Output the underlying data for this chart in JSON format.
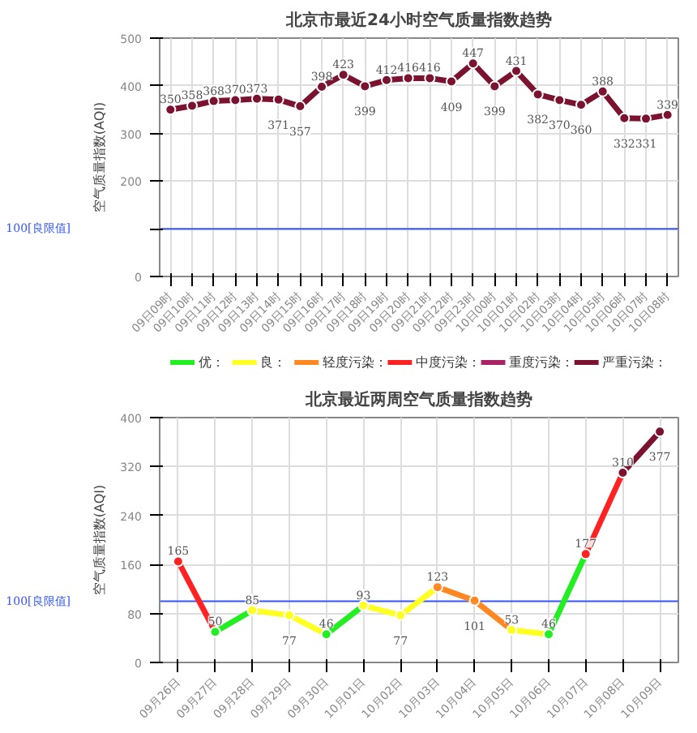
{
  "chart_data": [
    {
      "type": "line",
      "title": "北京市最近24小时空气质量指数趋势",
      "ylabel": "空气质量指数(AQI)",
      "categories": [
        "09日09时",
        "09日10时",
        "09日11时",
        "09日12时",
        "09日13时",
        "09日14时",
        "09日15时",
        "09日16时",
        "09日17时",
        "09日18时",
        "09日19时",
        "09日20时",
        "09日21时",
        "09日22时",
        "09日23时",
        "10日00时",
        "10日01时",
        "10日02时",
        "10日03时",
        "10日04时",
        "10日05时",
        "10日06时",
        "10日07时",
        "10日08时"
      ],
      "series": [
        {
          "color": "#7b1230",
          "values": [
            350,
            358,
            368,
            370,
            373,
            371,
            357,
            398,
            423,
            399,
            412,
            416,
            416,
            409,
            447,
            399,
            431,
            382,
            370,
            360,
            388,
            332,
            331,
            339
          ]
        }
      ],
      "ylim": [
        0,
        500
      ],
      "yticks": [
        0,
        {
          "value": 100,
          "label": null
        },
        200,
        300,
        400,
        500
      ],
      "ref_lines": [
        {
          "axis": "y",
          "value": 100,
          "label": "100[良限值]",
          "color": "#3355ff"
        }
      ],
      "grid": true,
      "marker": "circle",
      "data_labels": true,
      "legend": false
    },
    {
      "type": "line",
      "title": "北京最近两周空气质量指数趋势",
      "ylabel": "空气质量指数(AQI)",
      "categories": [
        "09月26日",
        "09月27日",
        "09月28日",
        "09月29日",
        "09月30日",
        "10月01日",
        "10月02日",
        "10月03日",
        "10月04日",
        "10月05日",
        "10月06日",
        "10月07日",
        "10月08日",
        "10月09日"
      ],
      "series": [
        {
          "name": "优：",
          "color": "#22ee22",
          "values": [
            null,
            50,
            null,
            null,
            46,
            null,
            null,
            null,
            null,
            null,
            46,
            null,
            null,
            null
          ]
        },
        {
          "name": "良：",
          "color": "#ffff22",
          "values": [
            null,
            null,
            85,
            77,
            null,
            93,
            77,
            null,
            null,
            53,
            null,
            null,
            null,
            null
          ]
        },
        {
          "name": "轻度污染：",
          "color": "#ff8822",
          "values": [
            null,
            null,
            null,
            null,
            null,
            null,
            null,
            123,
            101,
            null,
            null,
            null,
            null,
            null
          ]
        },
        {
          "name": "中度污染：",
          "color": "#ff2222",
          "values": [
            165,
            null,
            null,
            null,
            null,
            null,
            null,
            null,
            null,
            null,
            null,
            177,
            null,
            null
          ]
        },
        {
          "name": "重度污染：",
          "color": "#aa2266",
          "values": [
            null,
            null,
            null,
            null,
            null,
            null,
            null,
            null,
            null,
            null,
            null,
            null,
            null,
            null
          ]
        },
        {
          "name": "严重污染：",
          "color": "#7b1230",
          "values": [
            null,
            null,
            null,
            null,
            null,
            null,
            null,
            null,
            null,
            null,
            null,
            null,
            310,
            377
          ]
        }
      ],
      "ylim": [
        0,
        400
      ],
      "yticks": [
        0,
        80,
        160,
        240,
        320,
        400
      ],
      "ref_lines": [
        {
          "axis": "y",
          "value": 100,
          "label": "100[良限值]",
          "color": "#3355ff"
        }
      ],
      "grid": true,
      "marker": "circle",
      "data_labels": true,
      "legend": "top"
    }
  ]
}
